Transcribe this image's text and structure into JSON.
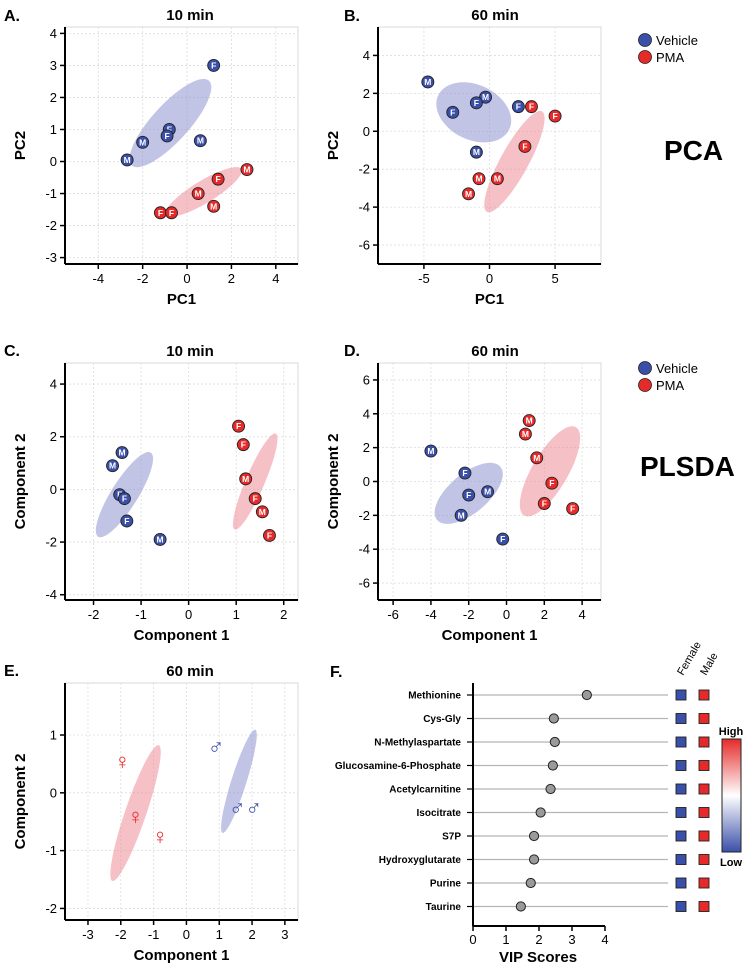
{
  "figure_labels": {
    "pca": "PCA",
    "plsda": "PLSDA",
    "legend_vehicle": "Vehicle",
    "legend_pma": "PMA"
  },
  "colors": {
    "vehicle": "#3a4fa8",
    "pma": "#e62a2a",
    "vehicle_ellipse": "#8f93cf",
    "pma_ellipse": "#ee8e98"
  },
  "chart_data": [
    {
      "id": "A",
      "panel_label": "A.",
      "type": "scatter",
      "title": "10 min",
      "xlabel": "PC1",
      "ylabel": "PC2",
      "xlim": [
        -5.5,
        5
      ],
      "ylim": [
        -3.2,
        4.2
      ],
      "xticks": [
        -4,
        -2,
        0,
        2,
        4
      ],
      "yticks": [
        -3,
        -2,
        -1,
        0,
        1,
        2,
        3,
        4
      ],
      "series": [
        {
          "name": "Vehicle",
          "points": [
            {
              "x": 1.2,
              "y": 3.0,
              "sex": "F"
            },
            {
              "x": -2.0,
              "y": 0.6,
              "sex": "M"
            },
            {
              "x": -0.8,
              "y": 1.0,
              "sex": "F"
            },
            {
              "x": -0.9,
              "y": 0.8,
              "sex": "F"
            },
            {
              "x": 0.6,
              "y": 0.65,
              "sex": "M"
            },
            {
              "x": -2.7,
              "y": 0.05,
              "sex": "M"
            }
          ]
        },
        {
          "name": "PMA",
          "points": [
            {
              "x": 2.7,
              "y": -0.25,
              "sex": "M"
            },
            {
              "x": 1.4,
              "y": -0.55,
              "sex": "F"
            },
            {
              "x": 0.5,
              "y": -1.0,
              "sex": "M"
            },
            {
              "x": 1.2,
              "y": -1.4,
              "sex": "M"
            },
            {
              "x": -1.2,
              "y": -1.6,
              "sex": "F"
            },
            {
              "x": -0.7,
              "y": -1.6,
              "sex": "F"
            }
          ]
        }
      ],
      "ellipses": [
        {
          "group": "Vehicle",
          "cx": -0.75,
          "cy": 1.2,
          "a": 4.4,
          "b": 1.35,
          "angle": 35
        },
        {
          "group": "PMA",
          "cx": 0.75,
          "cy": -0.95,
          "a": 3.7,
          "b": 0.75,
          "angle": 22
        }
      ]
    },
    {
      "id": "B",
      "panel_label": "B.",
      "type": "scatter",
      "title": "60 min",
      "xlabel": "PC1",
      "ylabel": "PC2",
      "xlim": [
        -8.5,
        8.5
      ],
      "ylim": [
        -7,
        5.5
      ],
      "xticks": [
        -5,
        0,
        5
      ],
      "yticks": [
        -6,
        -4,
        -2,
        0,
        2,
        4
      ],
      "series": [
        {
          "name": "Vehicle",
          "points": [
            {
              "x": -4.7,
              "y": 2.6,
              "sex": "M"
            },
            {
              "x": -0.3,
              "y": 1.8,
              "sex": "M"
            },
            {
              "x": -1.0,
              "y": 1.5,
              "sex": "F"
            },
            {
              "x": -2.8,
              "y": 1.0,
              "sex": "F"
            },
            {
              "x": 2.2,
              "y": 1.3,
              "sex": "F"
            },
            {
              "x": -1.0,
              "y": -1.1,
              "sex": "M"
            }
          ]
        },
        {
          "name": "PMA",
          "points": [
            {
              "x": 3.2,
              "y": 1.3,
              "sex": "F"
            },
            {
              "x": 5.0,
              "y": 0.8,
              "sex": "F"
            },
            {
              "x": 2.7,
              "y": -0.8,
              "sex": "F"
            },
            {
              "x": -0.8,
              "y": -2.5,
              "sex": "M"
            },
            {
              "x": 0.6,
              "y": -2.5,
              "sex": "M"
            },
            {
              "x": -1.6,
              "y": -3.3,
              "sex": "M"
            }
          ]
        }
      ],
      "ellipses": [
        {
          "group": "Vehicle",
          "cx": -1.2,
          "cy": 1.0,
          "a": 5.8,
          "b": 3.0,
          "angle": -12
        },
        {
          "group": "PMA",
          "cx": 1.9,
          "cy": -1.6,
          "a": 6.8,
          "b": 1.9,
          "angle": 50
        }
      ]
    },
    {
      "id": "C",
      "panel_label": "C.",
      "type": "scatter",
      "title": "10 min",
      "xlabel": "Component 1",
      "ylabel": "Component 2",
      "xlim": [
        -2.6,
        2.3
      ],
      "ylim": [
        -4.2,
        4.8
      ],
      "xticks": [
        -2,
        -1,
        0,
        1,
        2
      ],
      "yticks": [
        -4,
        -2,
        0,
        2,
        4
      ],
      "series": [
        {
          "name": "Vehicle",
          "points": [
            {
              "x": -1.4,
              "y": 1.4,
              "sex": "M"
            },
            {
              "x": -1.6,
              "y": 0.9,
              "sex": "M"
            },
            {
              "x": -1.45,
              "y": -0.2,
              "sex": "F"
            },
            {
              "x": -1.35,
              "y": -0.35,
              "sex": "F"
            },
            {
              "x": -1.3,
              "y": -1.2,
              "sex": "F"
            },
            {
              "x": -0.6,
              "y": -1.9,
              "sex": "M"
            }
          ]
        },
        {
          "name": "PMA",
          "points": [
            {
              "x": 1.05,
              "y": 2.4,
              "sex": "F"
            },
            {
              "x": 1.15,
              "y": 1.7,
              "sex": "F"
            },
            {
              "x": 1.2,
              "y": 0.4,
              "sex": "M"
            },
            {
              "x": 1.4,
              "y": -0.35,
              "sex": "F"
            },
            {
              "x": 1.55,
              "y": -0.85,
              "sex": "M"
            },
            {
              "x": 1.7,
              "y": -1.75,
              "sex": "F"
            }
          ]
        }
      ],
      "ellipses": [
        {
          "group": "Vehicle",
          "cx": -1.35,
          "cy": -0.2,
          "a": 3.4,
          "b": 0.62,
          "angle": 72
        },
        {
          "group": "PMA",
          "cx": 1.4,
          "cy": 0.3,
          "a": 3.75,
          "b": 0.42,
          "angle": 77
        }
      ]
    },
    {
      "id": "D",
      "panel_label": "D.",
      "type": "scatter",
      "title": "60 min",
      "xlabel": "Component 1",
      "ylabel": "Component 2",
      "xlim": [
        -6.8,
        5
      ],
      "ylim": [
        -7,
        7
      ],
      "xticks": [
        -6,
        -4,
        -2,
        0,
        2,
        4
      ],
      "yticks": [
        -6,
        -4,
        -2,
        0,
        2,
        4,
        6
      ],
      "series": [
        {
          "name": "Vehicle",
          "points": [
            {
              "x": -4.0,
              "y": 1.8,
              "sex": "M"
            },
            {
              "x": -2.2,
              "y": 0.5,
              "sex": "F"
            },
            {
              "x": -2.0,
              "y": -0.8,
              "sex": "F"
            },
            {
              "x": -1.0,
              "y": -0.6,
              "sex": "M"
            },
            {
              "x": -2.4,
              "y": -2.0,
              "sex": "M"
            },
            {
              "x": -0.2,
              "y": -3.4,
              "sex": "F"
            }
          ]
        },
        {
          "name": "PMA",
          "points": [
            {
              "x": 1.2,
              "y": 3.6,
              "sex": "M"
            },
            {
              "x": 1.0,
              "y": 2.8,
              "sex": "M"
            },
            {
              "x": 1.6,
              "y": 1.4,
              "sex": "M"
            },
            {
              "x": 2.4,
              "y": -0.1,
              "sex": "F"
            },
            {
              "x": 2.0,
              "y": -1.3,
              "sex": "F"
            },
            {
              "x": 3.5,
              "y": -1.6,
              "sex": "F"
            }
          ]
        }
      ],
      "ellipses": [
        {
          "group": "Vehicle",
          "cx": -2.0,
          "cy": -0.7,
          "a": 4.6,
          "b": 2.2,
          "angle": 45
        },
        {
          "group": "PMA",
          "cx": 2.3,
          "cy": 0.6,
          "a": 5.9,
          "b": 1.95,
          "angle": 63
        }
      ]
    },
    {
      "id": "E",
      "panel_label": "E.",
      "type": "scatter",
      "title": "60 min",
      "xlabel": "Component 1",
      "ylabel": "Component 2",
      "xlim": [
        -3.7,
        3.4
      ],
      "ylim": [
        -2.2,
        1.9
      ],
      "xticks": [
        -3,
        -2,
        -1,
        0,
        1,
        2,
        3
      ],
      "yticks": [
        -2,
        -1,
        0,
        1
      ],
      "series": [
        {
          "name": "Female",
          "symbol": "♀",
          "points": [
            {
              "x": -1.95,
              "y": 0.55
            },
            {
              "x": -1.55,
              "y": -0.4
            },
            {
              "x": -0.8,
              "y": -0.75
            }
          ]
        },
        {
          "name": "Male",
          "symbol": "♂",
          "points": [
            {
              "x": 0.9,
              "y": 0.8
            },
            {
              "x": 1.55,
              "y": -0.25
            },
            {
              "x": 2.05,
              "y": -0.25
            }
          ]
        }
      ],
      "ellipses": [
        {
          "group": "Female",
          "cx": -1.55,
          "cy": -0.35,
          "a": 2.75,
          "b": 0.58,
          "angle": 58
        },
        {
          "group": "Male",
          "cx": 1.6,
          "cy": 0.2,
          "a": 2.05,
          "b": 0.42,
          "angle": 60
        }
      ]
    },
    {
      "id": "F",
      "panel_label": "F.",
      "type": "lollipop",
      "xlabel": "VIP Scores",
      "xlim": [
        0,
        4
      ],
      "xticks": [
        0,
        1,
        2,
        3,
        4
      ],
      "categories": [
        "Methionine",
        "Cys-Gly",
        "N-Methylaspartate",
        "Glucosamine-6-Phosphate",
        "Acetylcarnitine",
        "Isocitrate",
        "S7P",
        "Hydroxyglutarate",
        "Purine",
        "Taurine"
      ],
      "values": [
        3.45,
        2.45,
        2.48,
        2.42,
        2.35,
        2.05,
        1.85,
        1.85,
        1.75,
        1.45
      ],
      "heat_columns": [
        "Female",
        "Male"
      ],
      "heat_values": {
        "Female": [
          "low",
          "low",
          "low",
          "low",
          "low",
          "low",
          "low",
          "low",
          "low",
          "low"
        ],
        "Male": [
          "high",
          "high",
          "high",
          "high",
          "high",
          "high",
          "high",
          "high",
          "high",
          "high"
        ]
      },
      "colorbar_labels": [
        "High",
        "Low"
      ]
    }
  ]
}
